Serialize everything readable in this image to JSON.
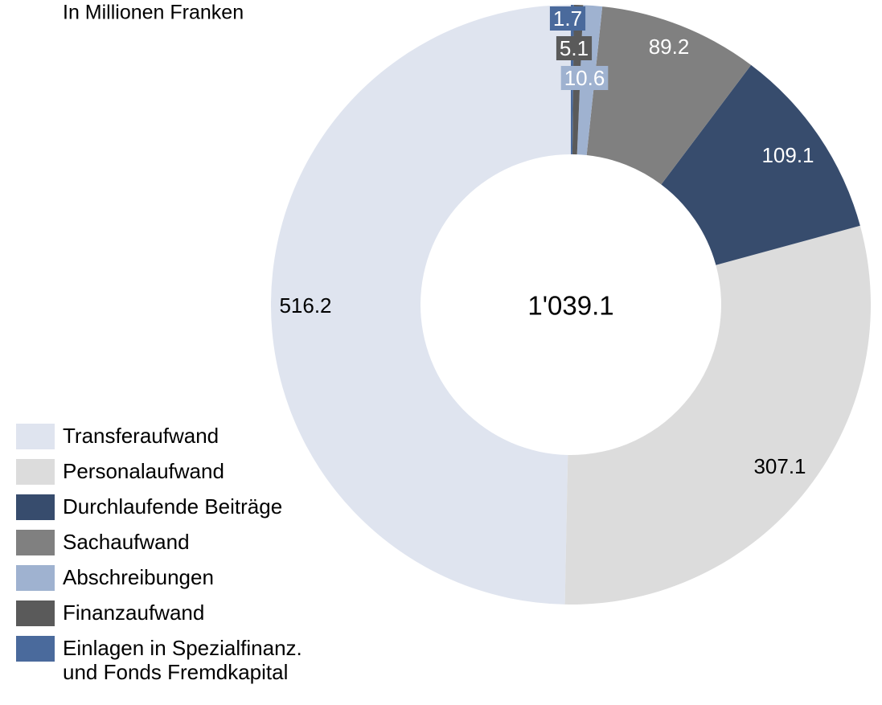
{
  "chart_data": {
    "type": "donut",
    "subtitle": "In Millionen Franken",
    "center_label": "1'039.1",
    "categories": [
      "Transferaufwand",
      "Personalaufwand",
      "Durchlaufende Beiträge",
      "Sachaufwand",
      "Abschreibungen",
      "Finanzaufwand",
      "Einlagen in Spezialfinanz. und Fonds Fremdkapital"
    ],
    "values": [
      516.2,
      307.1,
      109.1,
      89.2,
      10.6,
      5.1,
      1.7
    ],
    "colors": [
      "#dfe4ef",
      "#dcdcdc",
      "#374c6d",
      "#808080",
      "#9fb2d0",
      "#5a5a5a",
      "#4a6a9c"
    ],
    "legend": "bottom-left"
  }
}
